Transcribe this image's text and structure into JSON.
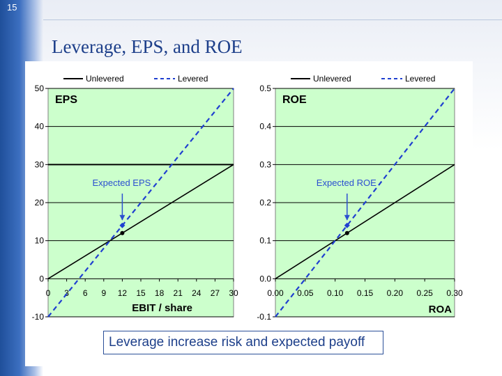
{
  "slide": {
    "number": "15",
    "title": "Leverage, EPS, and ROE"
  },
  "caption": "Leverage increase risk and expected payoff",
  "colors": {
    "plot_bg": "#ccffcc",
    "unlevered": "#000000",
    "levered": "#1f3fd0",
    "annotation": "#2b4fd0",
    "title": "#1d3f8a"
  },
  "chart_data": [
    {
      "type": "line",
      "panel_label": "EPS",
      "xlabel": "EBIT / share",
      "ylabel": "",
      "xlim": [
        0,
        30
      ],
      "ylim": [
        -10,
        50
      ],
      "x_ticks": [
        "0",
        "3",
        "6",
        "9",
        "12",
        "15",
        "18",
        "21",
        "24",
        "27",
        "30"
      ],
      "y_ticks": [
        "-10",
        "0",
        "10",
        "20",
        "30",
        "40",
        "50"
      ],
      "grid": "horizontal",
      "legend": {
        "position": "top",
        "entries": [
          "Unlevered",
          "Levered"
        ]
      },
      "series": [
        {
          "name": "Unlevered",
          "style": "solid",
          "x": [
            0,
            30
          ],
          "y": [
            0,
            30
          ]
        },
        {
          "name": "Levered",
          "style": "dashed",
          "x": [
            0,
            30
          ],
          "y": [
            -10,
            50
          ]
        }
      ],
      "reference_line": {
        "y": 30
      },
      "annotation": {
        "text": "Expected EPS",
        "x": 12
      },
      "expected_points": [
        {
          "x": 12,
          "y": 12
        },
        {
          "x": 12,
          "y": 14
        }
      ]
    },
    {
      "type": "line",
      "panel_label": "ROE",
      "xlabel": "ROA",
      "ylabel": "",
      "xlim": [
        0,
        0.3
      ],
      "ylim": [
        -0.1,
        0.5
      ],
      "x_ticks": [
        "0.00",
        "0.05",
        "0.10",
        "0.15",
        "0.20",
        "0.25",
        "0.30"
      ],
      "y_ticks": [
        "-0.1",
        "0.0",
        "0.1",
        "0.2",
        "0.3",
        "0.4",
        "0.5"
      ],
      "grid": "horizontal",
      "legend": {
        "position": "top",
        "entries": [
          "Unlevered",
          "Levered"
        ]
      },
      "series": [
        {
          "name": "Unlevered",
          "style": "solid",
          "x": [
            0,
            0.3
          ],
          "y": [
            0,
            0.3
          ]
        },
        {
          "name": "Levered",
          "style": "dashed",
          "x": [
            0,
            0.3
          ],
          "y": [
            -0.1,
            0.5
          ]
        }
      ],
      "annotation": {
        "text": "Expected ROE",
        "x": 0.12
      },
      "expected_points": [
        {
          "x": 0.12,
          "y": 0.12
        },
        {
          "x": 0.12,
          "y": 0.14
        }
      ]
    }
  ]
}
